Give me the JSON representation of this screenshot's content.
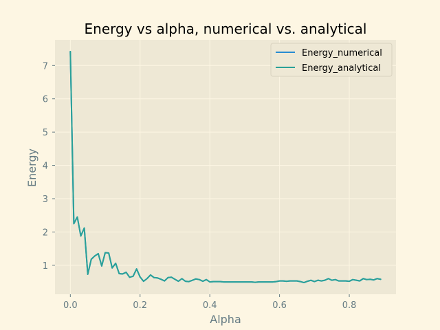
{
  "chart_data": {
    "type": "line",
    "title": "Energy vs alpha, numerical vs. analytical",
    "xlabel": "Alpha",
    "ylabel": "Energy",
    "xlim": [
      -0.044,
      0.934
    ],
    "ylim": [
      0.13,
      7.77
    ],
    "xticks": [
      0.0,
      0.2,
      0.4,
      0.6,
      0.8
    ],
    "xtick_labels": [
      "0.0",
      "0.2",
      "0.4",
      "0.6",
      "0.8"
    ],
    "yticks": [
      1,
      2,
      3,
      4,
      5,
      6,
      7
    ],
    "ytick_labels": [
      "1",
      "2",
      "3",
      "4",
      "5",
      "6",
      "7"
    ],
    "grid": true,
    "legend_position": "top-right",
    "x": [
      0.0,
      0.01,
      0.02,
      0.03,
      0.04,
      0.05,
      0.06,
      0.07,
      0.08,
      0.09,
      0.1,
      0.11,
      0.12,
      0.13,
      0.14,
      0.15,
      0.16,
      0.17,
      0.18,
      0.19,
      0.2,
      0.21,
      0.22,
      0.23,
      0.24,
      0.25,
      0.26,
      0.27,
      0.28,
      0.29,
      0.3,
      0.31,
      0.32,
      0.33,
      0.34,
      0.35,
      0.36,
      0.37,
      0.38,
      0.39,
      0.4,
      0.41,
      0.42,
      0.43,
      0.44,
      0.45,
      0.46,
      0.47,
      0.48,
      0.49,
      0.5,
      0.51,
      0.52,
      0.53,
      0.54,
      0.55,
      0.56,
      0.57,
      0.58,
      0.59,
      0.6,
      0.61,
      0.62,
      0.63,
      0.64,
      0.65,
      0.66,
      0.67,
      0.68,
      0.69,
      0.7,
      0.71,
      0.72,
      0.73,
      0.74,
      0.75,
      0.76,
      0.77,
      0.78,
      0.79,
      0.8,
      0.81,
      0.82,
      0.83,
      0.84,
      0.85,
      0.86,
      0.87,
      0.88,
      0.89
    ],
    "series": [
      {
        "name": "Energy_numerical",
        "color": "#268bd2",
        "values": [
          7.42,
          2.25,
          2.45,
          1.88,
          2.12,
          0.73,
          1.18,
          1.28,
          1.35,
          0.98,
          1.38,
          1.37,
          0.92,
          1.06,
          0.75,
          0.74,
          0.79,
          0.64,
          0.67,
          0.89,
          0.65,
          0.52,
          0.6,
          0.71,
          0.63,
          0.62,
          0.58,
          0.53,
          0.63,
          0.64,
          0.58,
          0.52,
          0.6,
          0.52,
          0.51,
          0.55,
          0.59,
          0.57,
          0.52,
          0.57,
          0.5,
          0.51,
          0.51,
          0.51,
          0.5,
          0.5,
          0.5,
          0.5,
          0.5,
          0.5,
          0.5,
          0.5,
          0.5,
          0.49,
          0.5,
          0.5,
          0.5,
          0.5,
          0.5,
          0.51,
          0.53,
          0.53,
          0.52,
          0.53,
          0.53,
          0.53,
          0.51,
          0.48,
          0.52,
          0.55,
          0.51,
          0.55,
          0.53,
          0.55,
          0.6,
          0.55,
          0.57,
          0.53,
          0.53,
          0.53,
          0.52,
          0.57,
          0.55,
          0.53,
          0.6,
          0.57,
          0.58,
          0.56,
          0.6,
          0.58
        ]
      },
      {
        "name": "Energy_analytical",
        "color": "#2aa198",
        "values": [
          7.42,
          2.25,
          2.45,
          1.88,
          2.12,
          0.73,
          1.18,
          1.28,
          1.35,
          0.98,
          1.38,
          1.37,
          0.92,
          1.06,
          0.75,
          0.74,
          0.79,
          0.64,
          0.67,
          0.89,
          0.65,
          0.52,
          0.6,
          0.71,
          0.63,
          0.62,
          0.58,
          0.53,
          0.63,
          0.64,
          0.58,
          0.52,
          0.6,
          0.52,
          0.51,
          0.55,
          0.59,
          0.57,
          0.52,
          0.57,
          0.5,
          0.51,
          0.51,
          0.51,
          0.5,
          0.5,
          0.5,
          0.5,
          0.5,
          0.5,
          0.5,
          0.5,
          0.5,
          0.49,
          0.5,
          0.5,
          0.5,
          0.5,
          0.5,
          0.51,
          0.53,
          0.53,
          0.52,
          0.53,
          0.53,
          0.53,
          0.51,
          0.48,
          0.52,
          0.55,
          0.51,
          0.55,
          0.53,
          0.55,
          0.6,
          0.55,
          0.57,
          0.53,
          0.53,
          0.53,
          0.52,
          0.57,
          0.55,
          0.53,
          0.6,
          0.57,
          0.58,
          0.56,
          0.6,
          0.58
        ]
      }
    ]
  },
  "colors": {
    "figure_background": "#fdf6e3",
    "plot_background": "#eee8d5",
    "grid": "#fdf6e3",
    "text": "#657b83",
    "title": "#000000"
  }
}
